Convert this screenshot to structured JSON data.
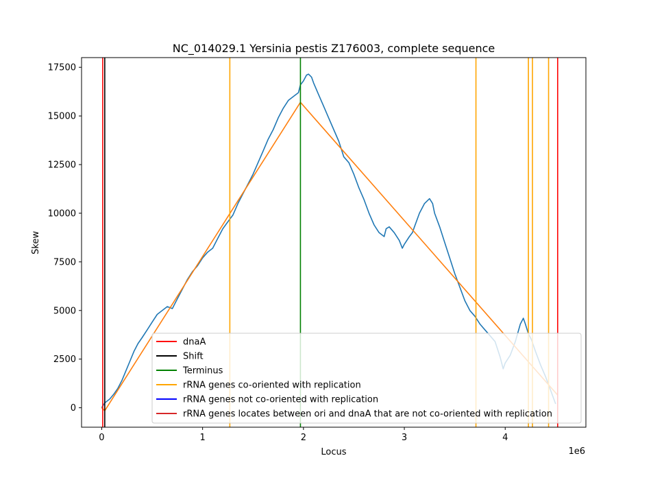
{
  "chart_data": {
    "type": "line",
    "title": "NC_014029.1 Yersinia pestis Z176003, complete sequence",
    "xlabel": "Locus",
    "ylabel": "Skew",
    "x_offset_label": "1e6",
    "xlim": [
      -200000,
      4800000
    ],
    "ylim": [
      -1000,
      18000
    ],
    "x_ticks": [
      {
        "value": 0,
        "label": "0"
      },
      {
        "value": 1000000,
        "label": "1"
      },
      {
        "value": 2000000,
        "label": "2"
      },
      {
        "value": 3000000,
        "label": "3"
      },
      {
        "value": 4000000,
        "label": "4"
      }
    ],
    "y_ticks": [
      {
        "value": 0,
        "label": "0"
      },
      {
        "value": 2500,
        "label": "2500"
      },
      {
        "value": 5000,
        "label": "5000"
      },
      {
        "value": 7500,
        "label": "7500"
      },
      {
        "value": 10000,
        "label": "10000"
      },
      {
        "value": 12500,
        "label": "12500"
      },
      {
        "value": 15000,
        "label": "15000"
      },
      {
        "value": 17500,
        "label": "17500"
      }
    ],
    "series": [
      {
        "color": "#1f77b4",
        "x": [
          0,
          30000,
          80000,
          120000,
          160000,
          200000,
          240000,
          280000,
          320000,
          360000,
          400000,
          450000,
          500000,
          550000,
          600000,
          650000,
          700000,
          750000,
          800000,
          850000,
          900000,
          950000,
          1000000,
          1050000,
          1100000,
          1150000,
          1200000,
          1270000,
          1300000,
          1350000,
          1400000,
          1450000,
          1500000,
          1550000,
          1600000,
          1650000,
          1700000,
          1750000,
          1800000,
          1850000,
          1900000,
          1950000,
          1970000,
          2000000,
          2030000,
          2050000,
          2080000,
          2100000,
          2150000,
          2200000,
          2250000,
          2300000,
          2350000,
          2400000,
          2450000,
          2500000,
          2550000,
          2600000,
          2650000,
          2700000,
          2750000,
          2800000,
          2820000,
          2850000,
          2900000,
          2950000,
          2980000,
          3000000,
          3050000,
          3080000,
          3100000,
          3150000,
          3200000,
          3250000,
          3280000,
          3300000,
          3350000,
          3400000,
          3450000,
          3500000,
          3550000,
          3600000,
          3650000,
          3700000,
          3750000,
          3800000,
          3850000,
          3900000,
          3950000,
          3980000,
          4000000,
          4050000,
          4100000,
          4150000,
          4180000,
          4200000,
          4230000,
          4260000,
          4300000,
          4350000,
          4400000,
          4450000,
          4500000
        ],
        "y": [
          0,
          250,
          450,
          700,
          1000,
          1400,
          1900,
          2400,
          2900,
          3300,
          3600,
          4000,
          4400,
          4800,
          5000,
          5200,
          5100,
          5600,
          6100,
          6600,
          7000,
          7300,
          7700,
          8000,
          8200,
          8700,
          9200,
          9700,
          9900,
          10500,
          11000,
          11500,
          12000,
          12600,
          13200,
          13800,
          14300,
          14900,
          15400,
          15800,
          16000,
          16200,
          16600,
          16800,
          17100,
          17150,
          17000,
          16700,
          16100,
          15500,
          14900,
          14300,
          13700,
          12900,
          12600,
          12000,
          11300,
          10700,
          10000,
          9400,
          9000,
          8800,
          9200,
          9300,
          9000,
          8600,
          8200,
          8400,
          8800,
          9000,
          9300,
          10000,
          10500,
          10750,
          10500,
          10000,
          9300,
          8500,
          7700,
          6900,
          6200,
          5500,
          5000,
          4700,
          4300,
          4000,
          3700,
          3400,
          2600,
          2000,
          2300,
          2700,
          3400,
          4300,
          4600,
          4300,
          3800,
          3500,
          2900,
          2200,
          1600,
          900,
          200
        ]
      },
      {
        "color": "#ff7f0e",
        "x": [
          0,
          30000,
          1970000,
          4520000
        ],
        "y": [
          0,
          -150,
          15700,
          650
        ]
      }
    ],
    "vlines": [
      {
        "x": 10000,
        "color": "#ff0000",
        "kind": "dnaA"
      },
      {
        "x": 30000,
        "color": "#000000",
        "kind": "shift"
      },
      {
        "x": 1970000,
        "color": "#008000",
        "kind": "terminus"
      },
      {
        "x": 1270000,
        "color": "#ffa500",
        "kind": "rrna"
      },
      {
        "x": 3710000,
        "color": "#ffa500",
        "kind": "rrna"
      },
      {
        "x": 4230000,
        "color": "#ffa500",
        "kind": "rrna"
      },
      {
        "x": 4270000,
        "color": "#ffa500",
        "kind": "rrna"
      },
      {
        "x": 4430000,
        "color": "#ffa500",
        "kind": "rrna"
      },
      {
        "x": 4520000,
        "color": "#ff0000",
        "kind": "dnaA"
      }
    ],
    "legend": {
      "position": "lower-right",
      "items": [
        {
          "label": "dnaA",
          "color": "#ff0000"
        },
        {
          "label": "Shift",
          "color": "#000000"
        },
        {
          "label": "Terminus",
          "color": "#008000"
        },
        {
          "label": "rRNA genes co-oriented with replication",
          "color": "#ffa500"
        },
        {
          "label": "rRNA genes not co-oriented with replication",
          "color": "#0000ff"
        },
        {
          "label": "rRNA genes locates between ori and dnaA that are not co-oriented with replication",
          "color": "#d62728"
        }
      ]
    },
    "grid": false
  }
}
